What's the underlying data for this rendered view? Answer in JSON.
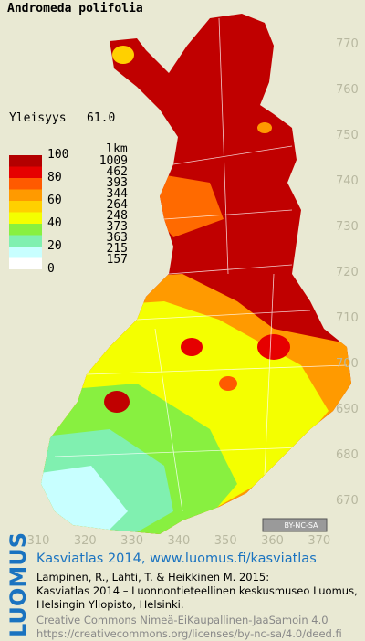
{
  "header": {
    "title": "Andromeda polifolia",
    "frequency_label": "Yleisyys",
    "frequency_value": "61.0"
  },
  "legend": {
    "scale_labels": [
      "100",
      "80",
      "60",
      "40",
      "20",
      "0"
    ],
    "count_header": "lkm",
    "items": [
      {
        "count": "1009",
        "color": "#b30000"
      },
      {
        "count": "462",
        "color": "#e60000"
      },
      {
        "count": "393",
        "color": "#ff5a00"
      },
      {
        "count": "344",
        "color": "#ff9a00"
      },
      {
        "count": "264",
        "color": "#ffd000"
      },
      {
        "count": "248",
        "color": "#f4ff00"
      },
      {
        "count": "373",
        "color": "#88f040"
      },
      {
        "count": "363",
        "color": "#80f0b0"
      },
      {
        "count": "215",
        "color": "#c8ffff"
      },
      {
        "count": "157",
        "color": "#ffffff"
      }
    ]
  },
  "map": {
    "x_ticks": [
      310,
      320,
      330,
      340,
      350,
      360,
      370
    ],
    "y_ticks": [
      770,
      760,
      750,
      740,
      730,
      720,
      710,
      700,
      690,
      680,
      670
    ],
    "cc_badge": "BY-NC-SA"
  },
  "footer": {
    "logo": "LUOMUS",
    "atlas": "Kasviatlas 2014, www.luomus.fi/kasviatlas",
    "citation": [
      "Lampinen, R., Lahti, T. & Heikkinen M. 2015:",
      "Kasviatlas 2014 – Luonnontieteellinen keskusmuseo Luomus,",
      "Helsingin Yliopisto, Helsinki."
    ],
    "license": [
      "Creative Commons Nimeä-EiKaupallinen-JaaSamoin 4.0",
      "https://creativecommons.org/licenses/by-nc-sa/4.0/deed.fi"
    ]
  }
}
